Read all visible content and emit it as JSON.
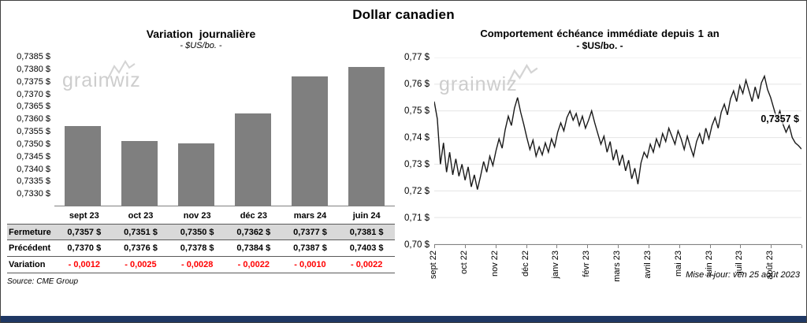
{
  "page": {
    "title": "Dollar canadien",
    "source": "Source: CME Group",
    "updated": "Mise à jour: ven 25 août 2023",
    "watermark": "grainwiz",
    "accent_color": "#1f3864"
  },
  "table": {
    "rows": [
      {
        "label": "Fermeture",
        "values": [
          "0,7357  $",
          "0,7351  $",
          "0,7350  $",
          "0,7362  $",
          "0,7377  $",
          "0,7381  $"
        ]
      },
      {
        "label": "Précédent",
        "values": [
          "0,7370  $",
          "0,7376  $",
          "0,7378  $",
          "0,7384  $",
          "0,7387  $",
          "0,7403  $"
        ]
      },
      {
        "label": "Variation",
        "values": [
          "- 0,0012",
          "- 0,0025",
          "- 0,0028",
          "- 0,0022",
          "- 0,0010",
          "- 0,0022"
        ]
      }
    ],
    "variation_color": "#ff0000",
    "fermeture_row_bg": "#d9d9d9"
  },
  "chart_data": [
    {
      "type": "bar",
      "title": "Variation journalière",
      "subtitle": "- $US/bo. -",
      "categories": [
        "sept 23",
        "oct 23",
        "nov 23",
        "déc 23",
        "mars 24",
        "juin 24"
      ],
      "values": [
        0.7357,
        0.7351,
        0.735,
        0.7362,
        0.7377,
        0.7381
      ],
      "ylim": [
        0.7325,
        0.7385
      ],
      "ytick_values": [
        0.733,
        0.7335,
        0.734,
        0.7345,
        0.735,
        0.7355,
        0.736,
        0.7365,
        0.737,
        0.7375,
        0.738,
        0.7385
      ],
      "ytick_labels": [
        "0,7330 $",
        "0,7335 $",
        "0,7340 $",
        "0,7345 $",
        "0,7350 $",
        "0,7355 $",
        "0,7360 $",
        "0,7365 $",
        "0,7370 $",
        "0,7375 $",
        "0,7380 $",
        "0,7385 $"
      ],
      "bar_color": "#7f7f7f",
      "grid": false,
      "legend": "none"
    },
    {
      "type": "line",
      "title": "Comportement échéance immédiate depuis 1 an",
      "subtitle": "- $US/bo. -",
      "x_tick_labels": [
        "sept 22",
        "oct 22",
        "nov 22",
        "déc 22",
        "janv 23",
        "févr 23",
        "mars 23",
        "avril 23",
        "mai 23",
        "juin 23",
        "juil 23",
        "août 23"
      ],
      "ylim": [
        0.7,
        0.77
      ],
      "ytick_values": [
        0.7,
        0.71,
        0.72,
        0.73,
        0.74,
        0.75,
        0.76,
        0.77
      ],
      "ytick_labels": [
        "0,70 $",
        "0,71 $",
        "0,72 $",
        "0,73 $",
        "0,74 $",
        "0,75 $",
        "0,76 $",
        "0,77 $"
      ],
      "line_color": "#1a1a1a",
      "grid": true,
      "legend": "none",
      "last_value_label": "0,7357 $",
      "values": [
        0.7535,
        0.747,
        0.73,
        0.738,
        0.727,
        0.7345,
        0.726,
        0.732,
        0.7255,
        0.73,
        0.724,
        0.729,
        0.7215,
        0.726,
        0.7205,
        0.7255,
        0.731,
        0.727,
        0.733,
        0.7295,
        0.735,
        0.7395,
        0.736,
        0.743,
        0.748,
        0.7445,
        0.751,
        0.755,
        0.7495,
        0.745,
        0.74,
        0.7355,
        0.739,
        0.733,
        0.7365,
        0.7335,
        0.738,
        0.7345,
        0.7395,
        0.7365,
        0.742,
        0.7455,
        0.7425,
        0.7475,
        0.75,
        0.7465,
        0.749,
        0.7445,
        0.748,
        0.7435,
        0.7465,
        0.75,
        0.7455,
        0.7415,
        0.7375,
        0.7405,
        0.7345,
        0.7385,
        0.7315,
        0.7355,
        0.7295,
        0.7335,
        0.7275,
        0.7315,
        0.7245,
        0.7285,
        0.7225,
        0.7305,
        0.7345,
        0.7325,
        0.7375,
        0.7345,
        0.7395,
        0.7365,
        0.7415,
        0.7385,
        0.7435,
        0.7405,
        0.7375,
        0.7425,
        0.7395,
        0.7355,
        0.7405,
        0.7365,
        0.733,
        0.7385,
        0.7415,
        0.7375,
        0.7435,
        0.7395,
        0.7445,
        0.7475,
        0.7435,
        0.7495,
        0.7525,
        0.7485,
        0.7545,
        0.7575,
        0.7535,
        0.7595,
        0.7565,
        0.7615,
        0.7575,
        0.7535,
        0.759,
        0.7545,
        0.7605,
        0.763,
        0.758,
        0.755,
        0.751,
        0.747,
        0.75,
        0.745,
        0.742,
        0.7445,
        0.74,
        0.738,
        0.737,
        0.7357
      ]
    }
  ]
}
